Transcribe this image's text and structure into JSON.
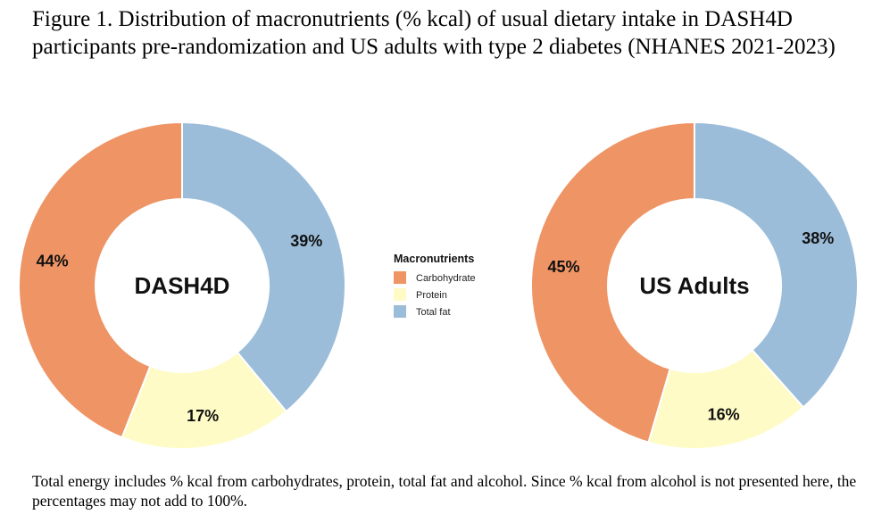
{
  "title": "Figure 1. Distribution of macronutrients (% kcal) of usual dietary intake in DASH4D participants pre-randomization and US adults with type 2 diabetes (NHANES 2021-2023)",
  "footnote": "Total energy includes % kcal from carbohydrates, protein, total fat and alcohol. Since % kcal from alcohol is not presented here, the percentages may not add to 100%.",
  "chart_data": [
    {
      "type": "pie",
      "variant": "donut",
      "center_label": "DASH4D",
      "categories": [
        "Total fat",
        "Protein",
        "Carbohydrate"
      ],
      "values": [
        39,
        17,
        44
      ],
      "labels": [
        "39%",
        "17%",
        "44%"
      ],
      "colors": [
        "#9bbdd9",
        "#fefbc6",
        "#ee9465"
      ]
    },
    {
      "type": "pie",
      "variant": "donut",
      "center_label": "US Adults",
      "categories": [
        "Total fat",
        "Protein",
        "Carbohydrate"
      ],
      "values": [
        38,
        16,
        45
      ],
      "labels": [
        "38%",
        "16%",
        "45%"
      ],
      "colors": [
        "#9bbdd9",
        "#fefbc6",
        "#ee9465"
      ]
    }
  ],
  "legend": {
    "title": "Macronutrients",
    "items": [
      {
        "label": "Carbohydrate",
        "color": "#ee9465"
      },
      {
        "label": "Protein",
        "color": "#fefbc6"
      },
      {
        "label": "Total fat",
        "color": "#9bbdd9"
      }
    ]
  }
}
